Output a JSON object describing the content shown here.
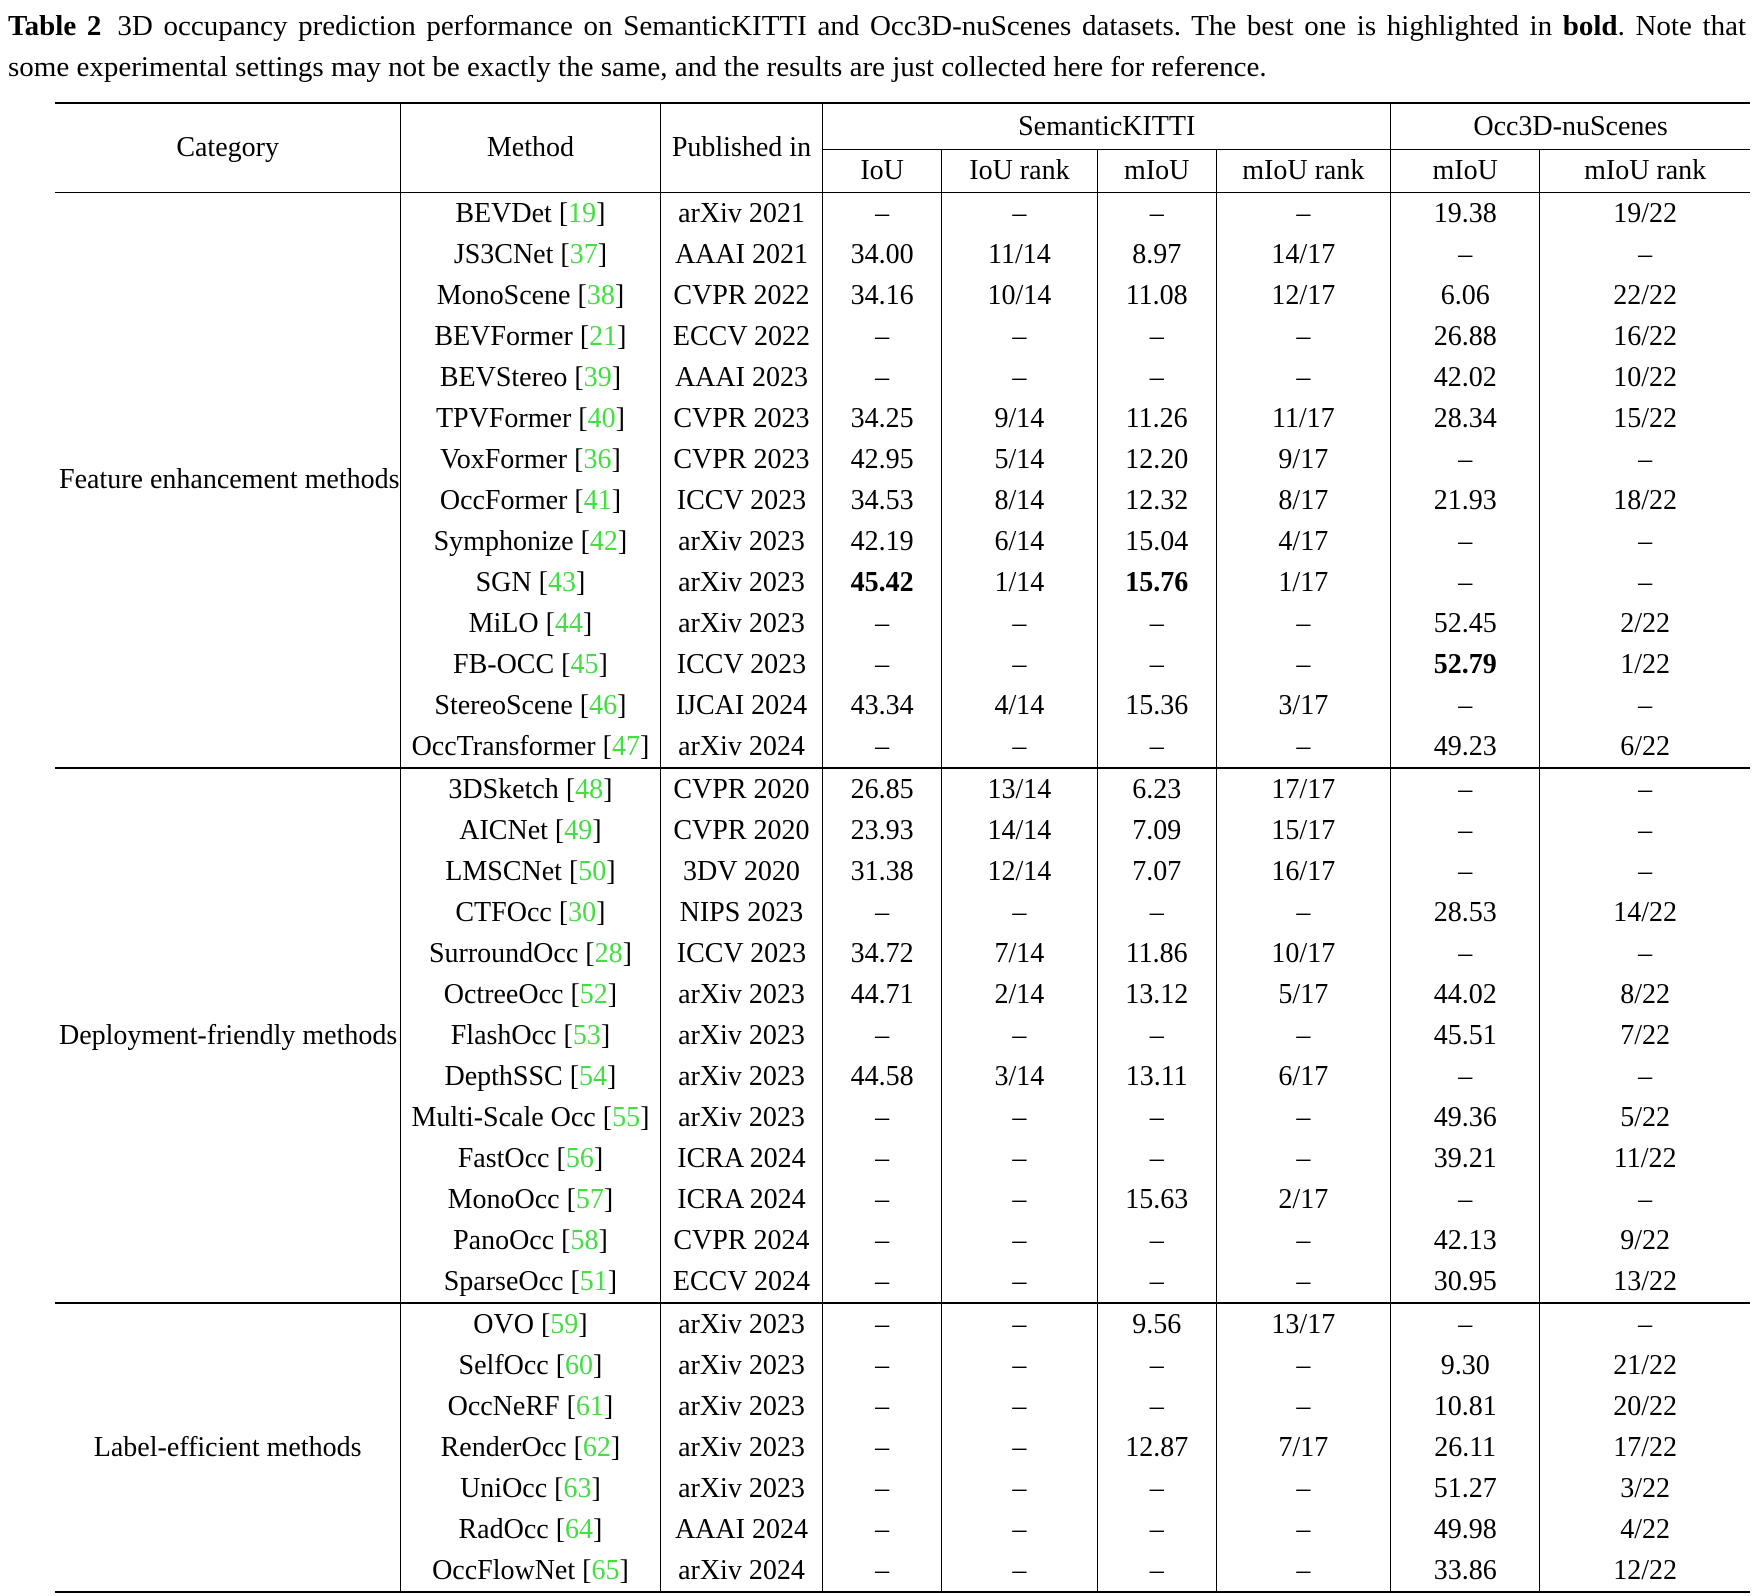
{
  "caption": {
    "label": "Table 2",
    "text_before_bold": "3D occupancy prediction performance on SemanticKITTI and Occ3D-nuScenes datasets. The best one is highlighted in ",
    "bold_word": "bold",
    "text_after_bold": ". Note that some experimental settings may not be exactly the same, and the results are just collected here for reference."
  },
  "table": {
    "colors": {
      "citation_green": "#44dd44"
    },
    "brackets": {
      "open": "[",
      "close": "]"
    },
    "headers": {
      "category": "Category",
      "method": "Method",
      "published_in": "Published in",
      "group1": "SemanticKITTI",
      "group2": "Occ3D-nuScenes",
      "sub": [
        "IoU",
        "IoU rank",
        "mIoU",
        "mIoU rank",
        "mIoU",
        "mIoU rank"
      ]
    },
    "groups": [
      {
        "category": "Feature enhancement methods",
        "rows": [
          {
            "method": "BEVDet",
            "ref": "19",
            "published": "arXiv 2021",
            "cells": [
              "–",
              "–",
              "–",
              "–",
              "19.38",
              "19/22"
            ],
            "bold": []
          },
          {
            "method": "JS3CNet",
            "ref": "37",
            "published": "AAAI 2021",
            "cells": [
              "34.00",
              "11/14",
              "8.97",
              "14/17",
              "–",
              "–"
            ],
            "bold": []
          },
          {
            "method": "MonoScene",
            "ref": "38",
            "published": "CVPR 2022",
            "cells": [
              "34.16",
              "10/14",
              "11.08",
              "12/17",
              "6.06",
              "22/22"
            ],
            "bold": []
          },
          {
            "method": "BEVFormer",
            "ref": "21",
            "published": "ECCV 2022",
            "cells": [
              "–",
              "–",
              "–",
              "–",
              "26.88",
              "16/22"
            ],
            "bold": []
          },
          {
            "method": "BEVStereo",
            "ref": "39",
            "published": "AAAI 2023",
            "cells": [
              "–",
              "–",
              "–",
              "–",
              "42.02",
              "10/22"
            ],
            "bold": []
          },
          {
            "method": "TPVFormer",
            "ref": "40",
            "published": "CVPR 2023",
            "cells": [
              "34.25",
              "9/14",
              "11.26",
              "11/17",
              "28.34",
              "15/22"
            ],
            "bold": []
          },
          {
            "method": "VoxFormer",
            "ref": "36",
            "published": "CVPR 2023",
            "cells": [
              "42.95",
              "5/14",
              "12.20",
              "9/17",
              "–",
              "–"
            ],
            "bold": []
          },
          {
            "method": "OccFormer",
            "ref": "41",
            "published": "ICCV 2023",
            "cells": [
              "34.53",
              "8/14",
              "12.32",
              "8/17",
              "21.93",
              "18/22"
            ],
            "bold": []
          },
          {
            "method": "Symphonize",
            "ref": "42",
            "published": "arXiv 2023",
            "cells": [
              "42.19",
              "6/14",
              "15.04",
              "4/17",
              "–",
              "–"
            ],
            "bold": []
          },
          {
            "method": "SGN",
            "ref": "43",
            "published": "arXiv 2023",
            "cells": [
              "45.42",
              "1/14",
              "15.76",
              "1/17",
              "–",
              "–"
            ],
            "bold": [
              0,
              2
            ]
          },
          {
            "method": "MiLO",
            "ref": "44",
            "published": "arXiv 2023",
            "cells": [
              "–",
              "–",
              "–",
              "–",
              "52.45",
              "2/22"
            ],
            "bold": []
          },
          {
            "method": "FB-OCC",
            "ref": "45",
            "published": "ICCV 2023",
            "cells": [
              "–",
              "–",
              "–",
              "–",
              "52.79",
              "1/22"
            ],
            "bold": [
              4
            ]
          },
          {
            "method": "StereoScene",
            "ref": "46",
            "published": "IJCAI 2024",
            "cells": [
              "43.34",
              "4/14",
              "15.36",
              "3/17",
              "–",
              "–"
            ],
            "bold": []
          },
          {
            "method": "OccTransformer",
            "ref": "47",
            "published": "arXiv 2024",
            "cells": [
              "–",
              "–",
              "–",
              "–",
              "49.23",
              "6/22"
            ],
            "bold": []
          }
        ]
      },
      {
        "category": "Deployment-friendly methods",
        "rows": [
          {
            "method": "3DSketch",
            "ref": "48",
            "published": "CVPR 2020",
            "cells": [
              "26.85",
              "13/14",
              "6.23",
              "17/17",
              "–",
              "–"
            ],
            "bold": []
          },
          {
            "method": "AICNet",
            "ref": "49",
            "published": "CVPR 2020",
            "cells": [
              "23.93",
              "14/14",
              "7.09",
              "15/17",
              "–",
              "–"
            ],
            "bold": []
          },
          {
            "method": "LMSCNet",
            "ref": "50",
            "published": "3DV 2020",
            "cells": [
              "31.38",
              "12/14",
              "7.07",
              "16/17",
              "–",
              "–"
            ],
            "bold": []
          },
          {
            "method": "CTFOcc",
            "ref": "30",
            "published": "NIPS 2023",
            "cells": [
              "–",
              "–",
              "–",
              "–",
              "28.53",
              "14/22"
            ],
            "bold": []
          },
          {
            "method": "SurroundOcc",
            "ref": "28",
            "published": "ICCV 2023",
            "cells": [
              "34.72",
              "7/14",
              "11.86",
              "10/17",
              "–",
              "–"
            ],
            "bold": []
          },
          {
            "method": "OctreeOcc",
            "ref": "52",
            "published": "arXiv 2023",
            "cells": [
              "44.71",
              "2/14",
              "13.12",
              "5/17",
              "44.02",
              "8/22"
            ],
            "bold": []
          },
          {
            "method": "FlashOcc",
            "ref": "53",
            "published": "arXiv 2023",
            "cells": [
              "–",
              "–",
              "–",
              "–",
              "45.51",
              "7/22"
            ],
            "bold": []
          },
          {
            "method": "DepthSSC",
            "ref": "54",
            "published": "arXiv 2023",
            "cells": [
              "44.58",
              "3/14",
              "13.11",
              "6/17",
              "–",
              "–"
            ],
            "bold": []
          },
          {
            "method": "Multi-Scale Occ",
            "ref": "55",
            "published": "arXiv 2023",
            "cells": [
              "–",
              "–",
              "–",
              "–",
              "49.36",
              "5/22"
            ],
            "bold": []
          },
          {
            "method": "FastOcc",
            "ref": "56",
            "published": "ICRA 2024",
            "cells": [
              "–",
              "–",
              "–",
              "–",
              "39.21",
              "11/22"
            ],
            "bold": []
          },
          {
            "method": "MonoOcc",
            "ref": "57",
            "published": "ICRA 2024",
            "cells": [
              "–",
              "–",
              "15.63",
              "2/17",
              "–",
              "–"
            ],
            "bold": []
          },
          {
            "method": "PanoOcc",
            "ref": "58",
            "published": "CVPR 2024",
            "cells": [
              "–",
              "–",
              "–",
              "–",
              "42.13",
              "9/22"
            ],
            "bold": []
          },
          {
            "method": "SparseOcc",
            "ref": "51",
            "published": "ECCV 2024",
            "cells": [
              "–",
              "–",
              "–",
              "–",
              "30.95",
              "13/22"
            ],
            "bold": []
          }
        ]
      },
      {
        "category": "Label-efficient methods",
        "rows": [
          {
            "method": "OVO",
            "ref": "59",
            "published": "arXiv 2023",
            "cells": [
              "–",
              "–",
              "9.56",
              "13/17",
              "–",
              "–"
            ],
            "bold": []
          },
          {
            "method": "SelfOcc",
            "ref": "60",
            "published": "arXiv 2023",
            "cells": [
              "–",
              "–",
              "–",
              "–",
              "9.30",
              "21/22"
            ],
            "bold": []
          },
          {
            "method": "OccNeRF",
            "ref": "61",
            "published": "arXiv 2023",
            "cells": [
              "–",
              "–",
              "–",
              "–",
              "10.81",
              "20/22"
            ],
            "bold": []
          },
          {
            "method": "RenderOcc",
            "ref": "62",
            "published": "arXiv 2023",
            "cells": [
              "–",
              "–",
              "12.87",
              "7/17",
              "26.11",
              "17/22"
            ],
            "bold": []
          },
          {
            "method": "UniOcc",
            "ref": "63",
            "published": "arXiv 2023",
            "cells": [
              "–",
              "–",
              "–",
              "–",
              "51.27",
              "3/22"
            ],
            "bold": []
          },
          {
            "method": "RadOcc",
            "ref": "64",
            "published": "AAAI 2024",
            "cells": [
              "–",
              "–",
              "–",
              "–",
              "49.98",
              "4/22"
            ],
            "bold": []
          },
          {
            "method": "OccFlowNet",
            "ref": "65",
            "published": "arXiv 2024",
            "cells": [
              "–",
              "–",
              "–",
              "–",
              "33.86",
              "12/22"
            ],
            "bold": []
          }
        ]
      }
    ]
  }
}
